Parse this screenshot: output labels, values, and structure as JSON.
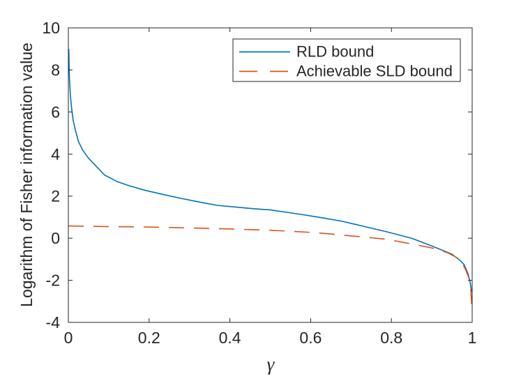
{
  "figure": {
    "background_color": "#ffffff",
    "axes_color": "#262626",
    "text_color": "#262626"
  },
  "chart_data": {
    "type": "line",
    "title": "",
    "xlabel": "γ",
    "ylabel": "Logarithm of Fisher information value",
    "xlim": [
      0,
      1
    ],
    "ylim": [
      -4,
      10
    ],
    "xticks": [
      0,
      0.2,
      0.4,
      0.6,
      0.8,
      1
    ],
    "xtick_labels": [
      "0",
      "0.2",
      "0.4",
      "0.6",
      "0.8",
      "1"
    ],
    "yticks": [
      -4,
      -2,
      0,
      2,
      4,
      6,
      8,
      10
    ],
    "ytick_labels": [
      "-4",
      "-2",
      "0",
      "2",
      "4",
      "6",
      "8",
      "10"
    ],
    "grid": false,
    "legend_position": "upper-right-inside",
    "series": [
      {
        "name": "RLD bound",
        "color": "#0072BD",
        "style": "solid",
        "x": [
          0.001,
          0.002,
          0.003,
          0.005,
          0.008,
          0.012,
          0.018,
          0.025,
          0.035,
          0.05,
          0.07,
          0.09,
          0.12,
          0.15,
          0.19,
          0.23,
          0.28,
          0.33,
          0.37,
          0.42,
          0.46,
          0.5,
          0.56,
          0.62,
          0.68,
          0.73,
          0.79,
          0.85,
          0.9,
          0.93,
          0.95,
          0.97,
          0.98,
          0.99,
          0.995,
          0.999
        ],
        "y": [
          9.0,
          8.1,
          7.5,
          6.8,
          6.2,
          5.6,
          5.1,
          4.6,
          4.2,
          3.8,
          3.4,
          3.0,
          2.7,
          2.5,
          2.28,
          2.1,
          1.89,
          1.7,
          1.56,
          1.47,
          1.4,
          1.35,
          1.18,
          1.0,
          0.8,
          0.57,
          0.3,
          0.0,
          -0.37,
          -0.6,
          -0.76,
          -1.05,
          -1.25,
          -1.7,
          -2.1,
          -2.56
        ]
      },
      {
        "name": "Achievable SLD bound",
        "color": "#D95319",
        "style": "dashed",
        "x": [
          0.0,
          0.05,
          0.1,
          0.15,
          0.2,
          0.25,
          0.3,
          0.35,
          0.4,
          0.45,
          0.5,
          0.55,
          0.6,
          0.65,
          0.7,
          0.75,
          0.79,
          0.83,
          0.86,
          0.89,
          0.915,
          0.94,
          0.96,
          0.975,
          0.985,
          0.992,
          0.996,
          0.999
        ],
        "y": [
          0.58,
          0.57,
          0.555,
          0.545,
          0.53,
          0.51,
          0.49,
          0.465,
          0.44,
          0.41,
          0.38,
          0.33,
          0.28,
          0.2,
          0.11,
          0.02,
          -0.05,
          -0.2,
          -0.31,
          -0.42,
          -0.53,
          -0.7,
          -0.9,
          -1.15,
          -1.55,
          -1.9,
          -2.3,
          -3.16
        ]
      }
    ]
  }
}
